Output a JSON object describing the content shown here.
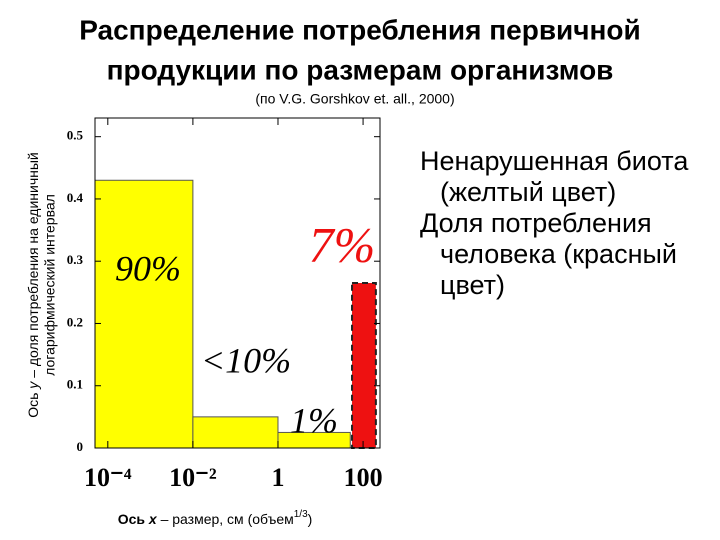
{
  "chart_data": {
    "type": "histogram",
    "title": [
      "Распределение потребления первичной",
      "продукции по размерам организмов"
    ],
    "subtitle": "(по V.G. Gorshkov et. all., 2000)",
    "y_label": {
      "line1": [
        "Ось",
        "y",
        "– доля потребления на единичный"
      ],
      "line2": "логарифмический интервал"
    },
    "x_label": {
      "prefix": "Ось",
      "var": "x",
      "text": "– размер, см (объем",
      "sup": "1/3",
      "suffix": ")"
    },
    "log_x": true,
    "xlim": [
      5e-05,
      250
    ],
    "xticks": [
      {
        "value": 0.0001,
        "label": "10⁻⁴"
      },
      {
        "value": 0.01,
        "label": "10⁻²"
      },
      1,
      100
    ],
    "ylim": [
      0,
      0.53
    ],
    "yticks": [
      0,
      0.1,
      0.2,
      0.3,
      0.4,
      0.5
    ],
    "series": [
      {
        "color": "#ffff00",
        "bins": [
          5e-05,
          0.01,
          1,
          50
        ],
        "values": [
          0.43,
          0.05,
          0.025
        ]
      },
      {
        "color": "#ee1111",
        "bins": [
          55,
          200
        ],
        "values": [
          0.265
        ]
      }
    ],
    "annotations": [
      "90%",
      "<10%",
      "1%",
      "7%"
    ],
    "notes": [
      "Ненарушенная биота (желтый цвет)",
      "Доля потребления человека (красный цвет)"
    ]
  }
}
